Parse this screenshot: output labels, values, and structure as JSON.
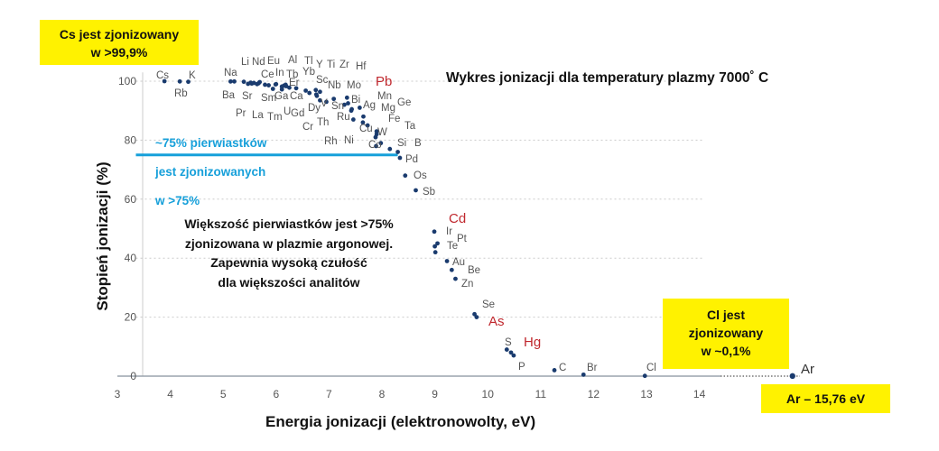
{
  "chart_data": {
    "type": "scatter",
    "title": "Wykres jonizacji dla temperatury plazmy 7000˚ C",
    "xlabel": "Energia jonizacji (elektronowolty, eV)",
    "ylabel": "Stopień jonizacji (%)",
    "xlim": [
      3,
      15.76
    ],
    "ylim": [
      0,
      100
    ],
    "x_ticks": [
      "3",
      "4",
      "5",
      "6",
      "7",
      "8",
      "9",
      "10",
      "11",
      "12",
      "13",
      "14"
    ],
    "y_ticks": [
      "0",
      "20",
      "40",
      "60",
      "80",
      "100"
    ],
    "grid": "horizontal dotted",
    "points": [
      {
        "label": "Cs",
        "x": 3.89,
        "y": 100
      },
      {
        "label": "Rb",
        "x": 4.18,
        "y": 99.9
      },
      {
        "label": "K",
        "x": 4.34,
        "y": 99.8
      },
      {
        "label": "Na",
        "x": 5.14,
        "y": 99.9
      },
      {
        "label": "Ba",
        "x": 5.21,
        "y": 99.9
      },
      {
        "label": "Li",
        "x": 5.39,
        "y": 99.8
      },
      {
        "label": "Sr",
        "x": 5.69,
        "y": 99.7
      },
      {
        "label": "Nd",
        "x": 5.52,
        "y": 99.5
      },
      {
        "label": "La",
        "x": 5.58,
        "y": 99.4
      },
      {
        "label": "Eu",
        "x": 5.67,
        "y": 99.3
      },
      {
        "label": "Ce",
        "x": 5.54,
        "y": 99.2
      },
      {
        "label": "Pr",
        "x": 5.47,
        "y": 99.1
      },
      {
        "label": "Sm",
        "x": 5.64,
        "y": 99.0
      },
      {
        "label": "Ga",
        "x": 6.0,
        "y": 99.0
      },
      {
        "label": "Al",
        "x": 5.99,
        "y": 98.9
      },
      {
        "label": "Tm",
        "x": 6.18,
        "y": 98.8
      },
      {
        "label": "In",
        "x": 5.79,
        "y": 98.8
      },
      {
        "label": "Tb",
        "x": 5.86,
        "y": 98.6
      },
      {
        "label": "Gd",
        "x": 6.15,
        "y": 98.5
      },
      {
        "label": "U",
        "x": 6.19,
        "y": 98.3
      },
      {
        "label": "Ca",
        "x": 6.11,
        "y": 98.2
      },
      {
        "label": "Tl",
        "x": 6.11,
        "y": 98.1
      },
      {
        "label": "Yb",
        "x": 6.25,
        "y": 97.8
      },
      {
        "label": "Y",
        "x": 6.38,
        "y": 97.6
      },
      {
        "label": "Dy",
        "x": 5.94,
        "y": 97.4
      },
      {
        "label": "Er",
        "x": 6.11,
        "y": 97.2
      },
      {
        "label": "V",
        "x": 6.75,
        "y": 97.0
      },
      {
        "label": "Sc",
        "x": 6.56,
        "y": 96.8
      },
      {
        "label": "Ti",
        "x": 6.83,
        "y": 96.4
      },
      {
        "label": "Zr",
        "x": 6.63,
        "y": 96.0
      },
      {
        "label": "Nb",
        "x": 6.76,
        "y": 95.5
      },
      {
        "label": "Cr",
        "x": 6.77,
        "y": 95.0
      },
      {
        "label": "Sn",
        "x": 7.34,
        "y": 94.4
      },
      {
        "label": "Mo",
        "x": 7.09,
        "y": 94.0
      },
      {
        "label": "Hf",
        "x": 6.83,
        "y": 93.5
      },
      {
        "label": "Th",
        "x": 6.95,
        "y": 93.0
      },
      {
        "label": "Ru",
        "x": 7.36,
        "y": 92.5
      },
      {
        "label": "Bi",
        "x": 7.29,
        "y": 92.0
      },
      {
        "label": "Ag",
        "x": 7.58,
        "y": 91.0
      },
      {
        "label": "Mn",
        "x": 7.43,
        "y": 90.5
      },
      {
        "label": "Pb",
        "x": 7.42,
        "y": 90.0
      },
      {
        "label": "Mg",
        "x": 7.65,
        "y": 88.0
      },
      {
        "label": "Rh",
        "x": 7.46,
        "y": 87.0
      },
      {
        "label": "Ni",
        "x": 7.64,
        "y": 86.0
      },
      {
        "label": "Cu",
        "x": 7.73,
        "y": 85.0
      },
      {
        "label": "Fe",
        "x": 7.9,
        "y": 83.0
      },
      {
        "label": "Ge",
        "x": 7.9,
        "y": 82.0
      },
      {
        "label": "Co",
        "x": 7.88,
        "y": 81.0
      },
      {
        "label": "W",
        "x": 7.98,
        "y": 79.0
      },
      {
        "label": "Ta",
        "x": 7.89,
        "y": 78.0
      },
      {
        "label": "Si",
        "x": 8.15,
        "y": 77.0
      },
      {
        "label": "B",
        "x": 8.3,
        "y": 76.0
      },
      {
        "label": "Pd",
        "x": 8.34,
        "y": 74.0
      },
      {
        "label": "Os",
        "x": 8.44,
        "y": 68.0
      },
      {
        "label": "Sb",
        "x": 8.64,
        "y": 63.0
      },
      {
        "label": "Cd",
        "x": 8.99,
        "y": 49.0
      },
      {
        "label": "Ir",
        "x": 9.05,
        "y": 45.0
      },
      {
        "label": "Pt",
        "x": 9.0,
        "y": 44.0
      },
      {
        "label": "Te",
        "x": 9.01,
        "y": 42.0
      },
      {
        "label": "Au",
        "x": 9.23,
        "y": 39.0
      },
      {
        "label": "Be",
        "x": 9.32,
        "y": 36.0
      },
      {
        "label": "Zn",
        "x": 9.39,
        "y": 33.0
      },
      {
        "label": "Se",
        "x": 9.75,
        "y": 21.0
      },
      {
        "label": "As",
        "x": 9.79,
        "y": 20.0
      },
      {
        "label": "Hg",
        "x": 10.44,
        "y": 8.0
      },
      {
        "label": "S",
        "x": 10.36,
        "y": 9.0
      },
      {
        "label": "P",
        "x": 10.49,
        "y": 7.0
      },
      {
        "label": "C",
        "x": 11.26,
        "y": 2.0
      },
      {
        "label": "Br",
        "x": 11.81,
        "y": 0.5
      },
      {
        "label": "Cl",
        "x": 12.97,
        "y": 0.1
      },
      {
        "label": "Ar",
        "x": 15.76,
        "y": 0.04
      }
    ],
    "point_labels": [
      {
        "t": "Cs"
      },
      {
        "t": "K"
      },
      {
        "t": "Rb"
      },
      {
        "t": "Na"
      },
      {
        "t": "Ba"
      },
      {
        "t": "Li"
      },
      {
        "t": "Nd"
      },
      {
        "t": "Eu"
      },
      {
        "t": "Al"
      },
      {
        "t": "Tl"
      },
      {
        "t": "Y"
      },
      {
        "t": "Ti"
      },
      {
        "t": "Zr"
      },
      {
        "t": "Hf"
      },
      {
        "t": "Ce"
      },
      {
        "t": "In"
      },
      {
        "t": "Tb"
      },
      {
        "t": "Yb"
      },
      {
        "t": "Sc"
      },
      {
        "t": "Sr"
      },
      {
        "t": "Ga"
      },
      {
        "t": "Ca"
      },
      {
        "t": "Er"
      },
      {
        "t": "Nb"
      },
      {
        "t": "Mo"
      },
      {
        "t": "Sm"
      },
      {
        "t": "V"
      },
      {
        "t": "Pr"
      },
      {
        "t": "La"
      },
      {
        "t": "Tm"
      },
      {
        "t": "U"
      },
      {
        "t": "Gd"
      },
      {
        "t": "Dy"
      },
      {
        "t": "Sn"
      },
      {
        "t": "Bi"
      },
      {
        "t": "Ag"
      },
      {
        "t": "Mn"
      },
      {
        "t": "Mg"
      },
      {
        "t": "Ge"
      },
      {
        "t": "Cr"
      },
      {
        "t": "Th"
      },
      {
        "t": "Ru"
      },
      {
        "t": "Cu"
      },
      {
        "t": "Fe"
      },
      {
        "t": "Ta"
      },
      {
        "t": "Rh"
      },
      {
        "t": "Ni"
      },
      {
        "t": "W"
      },
      {
        "t": "Co"
      },
      {
        "t": "Si"
      },
      {
        "t": "B"
      },
      {
        "t": "Pd"
      },
      {
        "t": "Os"
      },
      {
        "t": "Sb"
      },
      {
        "t": "Ir"
      },
      {
        "t": "Pt"
      },
      {
        "t": "Te"
      },
      {
        "t": "Au"
      },
      {
        "t": "Be"
      },
      {
        "t": "Zn"
      },
      {
        "t": "Se"
      },
      {
        "t": "S"
      },
      {
        "t": "P"
      },
      {
        "t": "C"
      },
      {
        "t": "Br"
      },
      {
        "t": "Cl"
      }
    ],
    "highlight_labels": [
      "Pb",
      "Cd",
      "As",
      "Hg"
    ],
    "ar_label": "Ar",
    "threshold_line": {
      "y": 75,
      "x_from": 3.35,
      "x_to": 8.3
    },
    "colors": {
      "points": "#1a3b6e",
      "labels": "#555555",
      "highlight": "#c0282e",
      "threshold": "#17a0da",
      "grid": "#cccccc",
      "axis": "#9aa3ad"
    }
  },
  "annotations": {
    "cs_box": [
      "Cs jest zjonizowany",
      "w >99,9%"
    ],
    "cl_box": [
      "Cl jest",
      "zjonizowany",
      "w ~0,1%"
    ],
    "ar_box": "Ar – 15,76 eV",
    "blue_1": "~75% pierwiastków",
    "blue_2": "jest zjonizowanych",
    "blue_3": "w >75%",
    "note": [
      "Większość pierwiastków jest >75%",
      "zjonizowana w plazmie argonowej.",
      "Zapewnia wysoką czułość",
      "dla większości analitów"
    ]
  }
}
